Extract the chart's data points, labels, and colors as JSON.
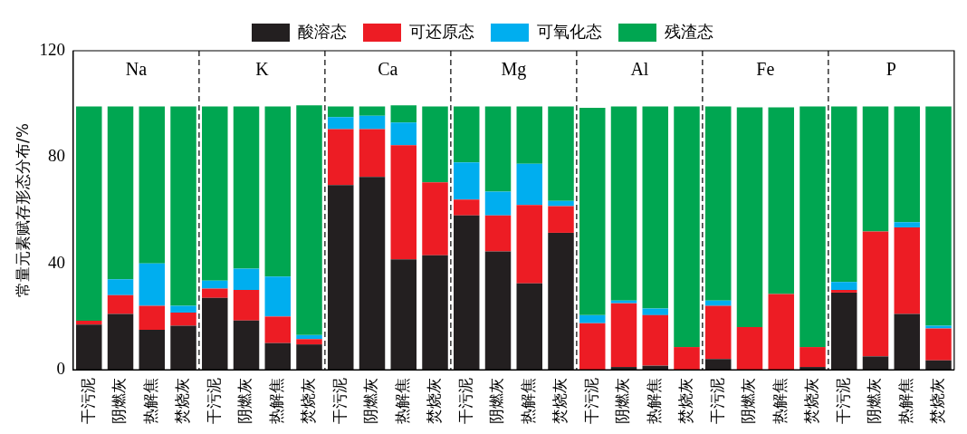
{
  "chart_data": {
    "type": "bar",
    "stacked": true,
    "ylabel": "常量元素赋存形态分布/%",
    "ylim": [
      0,
      120
    ],
    "yticks": [
      0,
      40,
      80,
      120
    ],
    "grid": false,
    "legend": "top",
    "annotations": [
      "Na",
      "K",
      "Ca",
      "Mg",
      "Al",
      "Fe",
      "P"
    ],
    "categories": [
      "干污泥",
      "阴燃灰",
      "热解焦",
      "焚烧灰",
      "干污泥",
      "阴燃灰",
      "热解焦",
      "焚烧灰",
      "干污泥",
      "阴燃灰",
      "热解焦",
      "焚烧灰",
      "干污泥",
      "阴燃灰",
      "热解焦",
      "焚烧灰",
      "干污泥",
      "阴燃灰",
      "热解焦",
      "焚烧灰",
      "干污泥",
      "阴燃灰",
      "热解焦",
      "焚烧灰",
      "干污泥",
      "阴燃灰",
      "热解焦",
      "焚烧灰"
    ],
    "series": [
      {
        "name": "酸溶态",
        "color": "#231f20",
        "values": [
          17,
          21,
          15,
          16.5,
          27,
          18.5,
          10,
          9.5,
          69.5,
          72.5,
          41.5,
          43,
          58,
          44.5,
          32.5,
          51.5,
          null,
          1,
          1.5,
          0,
          4,
          null,
          null,
          1,
          29,
          5,
          21,
          3.5
        ]
      },
      {
        "name": "可还原态",
        "color": "#ed1c24",
        "values": [
          1.4,
          7,
          9,
          5,
          3.5,
          11.5,
          10,
          2,
          21,
          18,
          43,
          27.5,
          6,
          13.5,
          29.5,
          10,
          17.5,
          24,
          19,
          8.5,
          20,
          16,
          28.5,
          7.5,
          1,
          47,
          32.5,
          12
        ]
      },
      {
        "name": "可氧化态",
        "color": "#00aeef",
        "values": [
          0,
          6,
          16,
          2.5,
          3,
          8,
          15,
          1.5,
          4.5,
          5,
          8.5,
          0,
          14,
          9,
          15.5,
          2,
          3,
          1,
          2.5,
          0,
          2,
          0,
          0,
          0,
          3,
          0,
          2,
          1
        ]
      },
      {
        "name": "残渣态",
        "color": "#00a651",
        "values": [
          80.6,
          65,
          59,
          75,
          65.5,
          61,
          64,
          86.5,
          4,
          3.5,
          6.5,
          28.5,
          21,
          32,
          21.5,
          35.5,
          78,
          73,
          76,
          90.5,
          73,
          82.7,
          70.2,
          90.5,
          66,
          47,
          43.5,
          82.5
        ]
      }
    ]
  }
}
